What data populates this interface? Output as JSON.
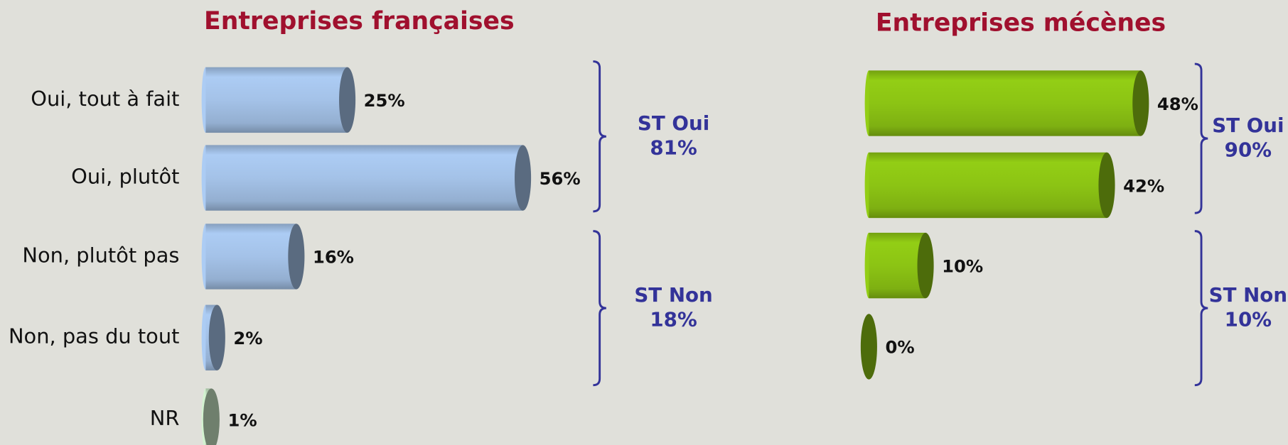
{
  "chart_data": [
    {
      "type": "bar",
      "title": "Entreprises françaises",
      "categories": [
        "Oui, tout à fait",
        "Oui, plutôt",
        "Non, plutôt pas",
        "Non, pas du tout",
        "NR"
      ],
      "values": [
        25,
        56,
        16,
        2,
        1
      ],
      "value_labels": [
        "25%",
        "56%",
        "16%",
        "2%",
        "1%"
      ],
      "colors": [
        "#a4c2e8",
        "#a4c2e8",
        "#a4c2e8",
        "#a4c2e8",
        "#c9e6c6"
      ],
      "annotations": [
        "ST Oui",
        "81%",
        "ST Non",
        "18%"
      ]
    },
    {
      "type": "bar",
      "title": "Entreprises mécènes",
      "categories": [
        null,
        null,
        null,
        null
      ],
      "values": [
        48,
        42,
        10,
        0
      ],
      "value_labels": [
        "48%",
        "42%",
        "10%",
        "0%"
      ],
      "color": "#8cc414",
      "annotations": [
        "ST Oui",
        "90%",
        "ST Non",
        "10%"
      ]
    }
  ]
}
